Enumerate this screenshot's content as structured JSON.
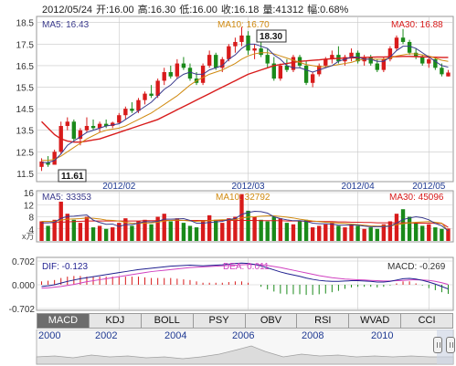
{
  "header": {
    "date": "2012/05/24",
    "open_label": "开:16.00",
    "high_label": "高:16.30",
    "low_label": "低:16.00",
    "close_label": "收:16.18",
    "volume_label": "量:41312",
    "change_label": "幅:0.68%"
  },
  "colors": {
    "up": "#d81b1b",
    "down": "#1a8a1a",
    "ma5": "#3a3a8c",
    "ma10": "#d08a10",
    "ma30": "#d81b1b",
    "dif": "#1f1f8f",
    "dea": "#d040c0",
    "grid": "#c8c8c8"
  },
  "price_panel": {
    "legend": {
      "ma5": "MA5: 16.43",
      "ma10": "MA10: 16.70",
      "ma30": "MA30: 16.88"
    },
    "max_label": "18.30",
    "min_label": "11.61",
    "y_ticks": [
      "18.5",
      "17.5",
      "16.5",
      "15.5",
      "14.5",
      "13.5",
      "12.5",
      "11.5"
    ],
    "x_ticks": [
      "2012/02",
      "2012/03",
      "2012/04",
      "2012/05"
    ]
  },
  "volume_panel": {
    "legend": {
      "ma5": "MA5: 33353",
      "ma10": "MA10: 32792",
      "ma30": "MA30: 45096"
    },
    "y_ticks": [
      "16",
      "12",
      "8",
      "4"
    ],
    "unit": "x万"
  },
  "macd_panel": {
    "legend": {
      "dif": "DIF: -0.123",
      "dea": "DEA: 0.011",
      "macd": "MACD: -0.269"
    },
    "y_ticks": [
      "0.702",
      "0.000",
      "-0.702"
    ]
  },
  "tabs": [
    "MACD",
    "KDJ",
    "BOLL",
    "PSY",
    "OBV",
    "RSI",
    "WVAD",
    "CCI"
  ],
  "navigator": {
    "years": [
      "2000",
      "2002",
      "2004",
      "2006",
      "2008",
      "2010"
    ]
  },
  "chart_data": {
    "type": "candlestick",
    "title": "",
    "price": {
      "ylim": [
        11.2,
        18.7
      ],
      "candles": [
        {
          "o": 11.8,
          "h": 12.2,
          "l": 11.61,
          "c": 12.05
        },
        {
          "o": 12.0,
          "h": 12.3,
          "l": 11.8,
          "c": 11.9
        },
        {
          "o": 11.9,
          "h": 12.6,
          "l": 11.9,
          "c": 12.5
        },
        {
          "o": 12.5,
          "h": 13.9,
          "l": 12.4,
          "c": 13.7
        },
        {
          "o": 13.7,
          "h": 14.1,
          "l": 13.5,
          "c": 13.9
        },
        {
          "o": 13.9,
          "h": 14.0,
          "l": 13.0,
          "c": 13.1
        },
        {
          "o": 13.1,
          "h": 13.6,
          "l": 12.8,
          "c": 13.5
        },
        {
          "o": 13.5,
          "h": 14.1,
          "l": 13.4,
          "c": 13.7
        },
        {
          "o": 13.7,
          "h": 14.0,
          "l": 13.5,
          "c": 13.6
        },
        {
          "o": 13.6,
          "h": 13.9,
          "l": 13.4,
          "c": 13.8
        },
        {
          "o": 13.8,
          "h": 14.0,
          "l": 13.6,
          "c": 13.7
        },
        {
          "o": 13.7,
          "h": 13.9,
          "l": 13.6,
          "c": 13.85
        },
        {
          "o": 13.85,
          "h": 14.3,
          "l": 13.8,
          "c": 14.2
        },
        {
          "o": 14.2,
          "h": 14.6,
          "l": 14.0,
          "c": 14.5
        },
        {
          "o": 14.5,
          "h": 14.8,
          "l": 14.3,
          "c": 14.4
        },
        {
          "o": 14.4,
          "h": 15.0,
          "l": 14.3,
          "c": 14.9
        },
        {
          "o": 14.9,
          "h": 15.3,
          "l": 14.7,
          "c": 15.2
        },
        {
          "o": 15.2,
          "h": 15.6,
          "l": 15.0,
          "c": 15.1
        },
        {
          "o": 15.1,
          "h": 15.9,
          "l": 15.0,
          "c": 15.8
        },
        {
          "o": 15.8,
          "h": 16.4,
          "l": 15.6,
          "c": 16.2
        },
        {
          "o": 16.2,
          "h": 16.5,
          "l": 15.9,
          "c": 16.0
        },
        {
          "o": 16.0,
          "h": 16.8,
          "l": 15.9,
          "c": 16.6
        },
        {
          "o": 16.6,
          "h": 16.9,
          "l": 16.3,
          "c": 16.4
        },
        {
          "o": 16.4,
          "h": 16.6,
          "l": 15.8,
          "c": 15.9
        },
        {
          "o": 15.9,
          "h": 16.2,
          "l": 15.6,
          "c": 15.7
        },
        {
          "o": 15.7,
          "h": 16.6,
          "l": 15.6,
          "c": 16.5
        },
        {
          "o": 16.5,
          "h": 17.2,
          "l": 16.4,
          "c": 17.0
        },
        {
          "o": 17.0,
          "h": 17.1,
          "l": 16.3,
          "c": 16.4
        },
        {
          "o": 16.4,
          "h": 16.9,
          "l": 16.2,
          "c": 16.8
        },
        {
          "o": 16.8,
          "h": 17.5,
          "l": 16.7,
          "c": 17.4
        },
        {
          "o": 17.4,
          "h": 17.8,
          "l": 17.1,
          "c": 17.6
        },
        {
          "o": 17.6,
          "h": 18.3,
          "l": 17.4,
          "c": 17.9
        },
        {
          "o": 17.9,
          "h": 18.1,
          "l": 17.0,
          "c": 17.2
        },
        {
          "o": 17.2,
          "h": 17.5,
          "l": 16.8,
          "c": 17.3
        },
        {
          "o": 17.3,
          "h": 17.6,
          "l": 16.9,
          "c": 17.0
        },
        {
          "o": 17.0,
          "h": 17.3,
          "l": 16.4,
          "c": 16.6
        },
        {
          "o": 16.6,
          "h": 16.9,
          "l": 15.8,
          "c": 15.9
        },
        {
          "o": 15.9,
          "h": 16.6,
          "l": 15.8,
          "c": 16.5
        },
        {
          "o": 16.5,
          "h": 16.8,
          "l": 16.2,
          "c": 16.3
        },
        {
          "o": 16.3,
          "h": 17.0,
          "l": 16.2,
          "c": 16.9
        },
        {
          "o": 16.9,
          "h": 17.0,
          "l": 16.4,
          "c": 16.5
        },
        {
          "o": 16.5,
          "h": 16.7,
          "l": 15.6,
          "c": 15.7
        },
        {
          "o": 15.7,
          "h": 16.2,
          "l": 15.5,
          "c": 16.1
        },
        {
          "o": 16.1,
          "h": 16.6,
          "l": 16.0,
          "c": 16.5
        },
        {
          "o": 16.5,
          "h": 16.9,
          "l": 16.4,
          "c": 16.8
        },
        {
          "o": 16.8,
          "h": 17.2,
          "l": 16.6,
          "c": 17.0
        },
        {
          "o": 17.0,
          "h": 17.4,
          "l": 16.6,
          "c": 16.7
        },
        {
          "o": 16.7,
          "h": 17.0,
          "l": 16.5,
          "c": 16.9
        },
        {
          "o": 16.9,
          "h": 17.3,
          "l": 16.7,
          "c": 17.1
        },
        {
          "o": 17.1,
          "h": 17.2,
          "l": 16.6,
          "c": 16.7
        },
        {
          "o": 16.7,
          "h": 17.0,
          "l": 16.5,
          "c": 16.9
        },
        {
          "o": 16.9,
          "h": 17.0,
          "l": 16.5,
          "c": 16.6
        },
        {
          "o": 16.6,
          "h": 16.8,
          "l": 16.2,
          "c": 16.3
        },
        {
          "o": 16.3,
          "h": 16.9,
          "l": 16.2,
          "c": 16.8
        },
        {
          "o": 16.8,
          "h": 17.4,
          "l": 16.7,
          "c": 17.3
        },
        {
          "o": 17.3,
          "h": 17.9,
          "l": 17.2,
          "c": 17.8
        },
        {
          "o": 17.8,
          "h": 18.2,
          "l": 17.5,
          "c": 17.6
        },
        {
          "o": 17.6,
          "h": 17.7,
          "l": 17.0,
          "c": 17.1
        },
        {
          "o": 17.1,
          "h": 17.3,
          "l": 16.8,
          "c": 16.9
        },
        {
          "o": 16.9,
          "h": 17.0,
          "l": 16.5,
          "c": 16.6
        },
        {
          "o": 16.6,
          "h": 16.9,
          "l": 16.4,
          "c": 16.8
        },
        {
          "o": 16.8,
          "h": 16.9,
          "l": 16.3,
          "c": 16.4
        },
        {
          "o": 16.4,
          "h": 16.6,
          "l": 16.0,
          "c": 16.1
        },
        {
          "o": 16.0,
          "h": 16.3,
          "l": 16.0,
          "c": 16.18
        }
      ],
      "ma5": [
        12.0,
        12.0,
        12.1,
        12.4,
        12.8,
        13.0,
        13.2,
        13.4,
        13.5,
        13.6,
        13.7,
        13.75,
        13.8,
        14.0,
        14.2,
        14.4,
        14.6,
        14.8,
        15.1,
        15.4,
        15.6,
        15.9,
        16.1,
        16.2,
        16.1,
        16.1,
        16.3,
        16.4,
        16.5,
        16.8,
        17.0,
        17.3,
        17.5,
        17.5,
        17.4,
        17.3,
        17.0,
        16.8,
        16.5,
        16.4,
        16.4,
        16.3,
        16.2,
        16.3,
        16.4,
        16.5,
        16.7,
        16.8,
        16.9,
        16.9,
        16.8,
        16.8,
        16.7,
        16.7,
        16.9,
        17.2,
        17.4,
        17.4,
        17.3,
        17.1,
        16.9,
        16.7,
        16.5,
        16.43
      ],
      "ma10": [
        12.1,
        12.1,
        12.15,
        12.3,
        12.5,
        12.7,
        12.9,
        13.1,
        13.25,
        13.4,
        13.5,
        13.55,
        13.6,
        13.7,
        13.85,
        14.0,
        14.15,
        14.3,
        14.5,
        14.7,
        14.9,
        15.1,
        15.35,
        15.6,
        15.8,
        15.95,
        16.1,
        16.2,
        16.3,
        16.45,
        16.6,
        16.8,
        16.95,
        17.05,
        17.1,
        17.1,
        17.05,
        16.95,
        16.85,
        16.75,
        16.65,
        16.55,
        16.5,
        16.45,
        16.45,
        16.5,
        16.55,
        16.6,
        16.65,
        16.75,
        16.8,
        16.8,
        16.8,
        16.8,
        16.85,
        16.95,
        17.0,
        17.05,
        17.05,
        17.0,
        16.95,
        16.85,
        16.75,
        16.7
      ],
      "ma30": [
        13.9,
        13.6,
        13.3,
        13.1,
        13.0,
        12.95,
        12.95,
        13.0,
        13.05,
        13.1,
        13.2,
        13.3,
        13.4,
        13.5,
        13.6,
        13.7,
        13.8,
        13.9,
        14.0,
        14.15,
        14.3,
        14.45,
        14.6,
        14.75,
        14.9,
        15.05,
        15.2,
        15.35,
        15.5,
        15.65,
        15.8,
        15.95,
        16.1,
        16.2,
        16.3,
        16.4,
        16.5,
        16.55,
        16.6,
        16.65,
        16.7,
        16.72,
        16.75,
        16.77,
        16.8,
        16.82,
        16.84,
        16.85,
        16.86,
        16.87,
        16.88,
        16.89,
        16.9,
        16.9,
        16.91,
        16.92,
        16.93,
        16.93,
        16.92,
        16.91,
        16.9,
        16.89,
        16.88,
        16.88
      ]
    },
    "volume": {
      "ylim": [
        0,
        16
      ],
      "values": [
        6.5,
        5.0,
        7.0,
        13.0,
        9.0,
        7.0,
        6.0,
        8.0,
        4.5,
        5.0,
        4.0,
        4.5,
        6.0,
        7.5,
        5.0,
        6.5,
        7.0,
        5.5,
        8.0,
        9.0,
        6.5,
        7.5,
        6.0,
        5.0,
        4.5,
        6.5,
        8.5,
        7.0,
        6.0,
        7.5,
        8.0,
        15.5,
        10.0,
        8.0,
        7.0,
        6.5,
        8.0,
        7.5,
        6.0,
        5.5,
        6.5,
        7.0,
        4.5,
        5.0,
        5.5,
        6.0,
        5.0,
        4.5,
        5.5,
        5.0,
        4.0,
        4.5,
        4.0,
        5.5,
        6.5,
        9.0,
        10.5,
        8.0,
        6.0,
        5.0,
        5.5,
        4.5,
        4.0,
        4.13
      ],
      "ma5": [
        6.0,
        6.0,
        6.2,
        7.5,
        8.1,
        8.2,
        8.4,
        8.6,
        6.9,
        6.1,
        5.5,
        5.6,
        4.8,
        5.4,
        5.4,
        5.9,
        6.4,
        6.3,
        6.5,
        7.2,
        7.2,
        7.3,
        7.4,
        6.8,
        5.9,
        5.9,
        6.1,
        6.3,
        6.5,
        7.1,
        7.4,
        8.8,
        9.4,
        9.8,
        9.7,
        9.2,
        8.0,
        7.4,
        7.0,
        6.7,
        6.7,
        6.5,
        5.9,
        5.7,
        5.7,
        5.6,
        5.2,
        5.2,
        5.3,
        5.2,
        4.9,
        4.7,
        4.7,
        4.7,
        4.9,
        5.9,
        7.1,
        7.6,
        8.0,
        7.7,
        7.0,
        5.8,
        5.0,
        3.33
      ],
      "ma10": [
        6.5,
        6.5,
        6.4,
        6.9,
        7.2,
        7.3,
        7.4,
        7.6,
        7.5,
        7.3,
        6.9,
        6.8,
        6.6,
        6.2,
        5.8,
        5.8,
        5.9,
        6.0,
        6.2,
        6.6,
        6.8,
        6.9,
        6.8,
        6.6,
        6.5,
        6.6,
        6.7,
        6.9,
        7.0,
        7.0,
        7.0,
        7.6,
        7.9,
        8.0,
        8.2,
        8.3,
        8.3,
        8.1,
        7.9,
        7.6,
        7.2,
        6.9,
        6.6,
        6.4,
        6.2,
        6.1,
        5.9,
        5.8,
        5.6,
        5.4,
        5.2,
        5.0,
        4.9,
        4.9,
        5.0,
        5.4,
        5.7,
        6.0,
        6.2,
        6.3,
        6.4,
        6.2,
        5.9,
        3.28
      ],
      "ma30": [
        6.0,
        6.0,
        6.1,
        6.2,
        6.3,
        6.4,
        6.5,
        6.6,
        6.6,
        6.6,
        6.6,
        6.6,
        6.6,
        6.6,
        6.6,
        6.6,
        6.7,
        6.7,
        6.7,
        6.8,
        6.8,
        6.8,
        6.8,
        6.8,
        6.8,
        6.8,
        6.8,
        6.8,
        6.8,
        6.8,
        6.8,
        6.8,
        6.8,
        6.8,
        6.7,
        6.7,
        6.7,
        6.7,
        6.6,
        6.6,
        6.6,
        6.5,
        6.5,
        6.5,
        6.4,
        6.4,
        6.3,
        6.3,
        6.2,
        6.2,
        6.1,
        6.1,
        6.0,
        6.0,
        6.0,
        6.0,
        6.0,
        6.0,
        5.9,
        5.9,
        5.9,
        5.8,
        5.8,
        4.51
      ]
    },
    "macd": {
      "ylim": [
        -0.702,
        0.702
      ],
      "dif": [
        -0.05,
        -0.03,
        0.0,
        0.05,
        0.1,
        0.14,
        0.18,
        0.21,
        0.24,
        0.27,
        0.3,
        0.33,
        0.36,
        0.39,
        0.42,
        0.45,
        0.47,
        0.49,
        0.51,
        0.53,
        0.55,
        0.56,
        0.57,
        0.58,
        0.57,
        0.56,
        0.57,
        0.58,
        0.59,
        0.61,
        0.63,
        0.64,
        0.63,
        0.6,
        0.56,
        0.5,
        0.44,
        0.38,
        0.33,
        0.29,
        0.25,
        0.2,
        0.16,
        0.13,
        0.11,
        0.1,
        0.1,
        0.11,
        0.12,
        0.12,
        0.11,
        0.1,
        0.08,
        0.08,
        0.1,
        0.14,
        0.18,
        0.19,
        0.17,
        0.13,
        0.08,
        0.02,
        -0.05,
        -0.123
      ],
      "dea": [
        -0.1,
        -0.09,
        -0.07,
        -0.05,
        -0.02,
        0.01,
        0.05,
        0.09,
        0.12,
        0.15,
        0.18,
        0.21,
        0.24,
        0.27,
        0.3,
        0.33,
        0.36,
        0.39,
        0.41,
        0.43,
        0.45,
        0.47,
        0.49,
        0.51,
        0.52,
        0.53,
        0.54,
        0.55,
        0.56,
        0.57,
        0.58,
        0.59,
        0.6,
        0.6,
        0.59,
        0.57,
        0.54,
        0.51,
        0.47,
        0.43,
        0.39,
        0.35,
        0.31,
        0.27,
        0.24,
        0.21,
        0.19,
        0.17,
        0.16,
        0.15,
        0.14,
        0.13,
        0.12,
        0.11,
        0.11,
        0.12,
        0.13,
        0.14,
        0.15,
        0.14,
        0.13,
        0.1,
        0.06,
        0.011
      ],
      "hist": [
        0.1,
        0.12,
        0.14,
        0.2,
        0.24,
        0.26,
        0.26,
        0.24,
        0.24,
        0.24,
        0.24,
        0.24,
        0.24,
        0.24,
        0.24,
        0.24,
        0.22,
        0.2,
        0.2,
        0.2,
        0.2,
        0.18,
        0.16,
        0.14,
        0.1,
        0.06,
        0.06,
        0.06,
        0.06,
        0.08,
        0.1,
        0.1,
        0.06,
        0.0,
        -0.06,
        -0.14,
        -0.2,
        -0.26,
        -0.28,
        -0.28,
        -0.28,
        -0.3,
        -0.3,
        -0.28,
        -0.26,
        -0.22,
        -0.18,
        -0.12,
        -0.08,
        -0.06,
        -0.06,
        -0.06,
        -0.08,
        -0.06,
        -0.02,
        0.04,
        0.1,
        0.1,
        0.04,
        -0.02,
        -0.1,
        -0.16,
        -0.22,
        -0.269
      ]
    }
  }
}
